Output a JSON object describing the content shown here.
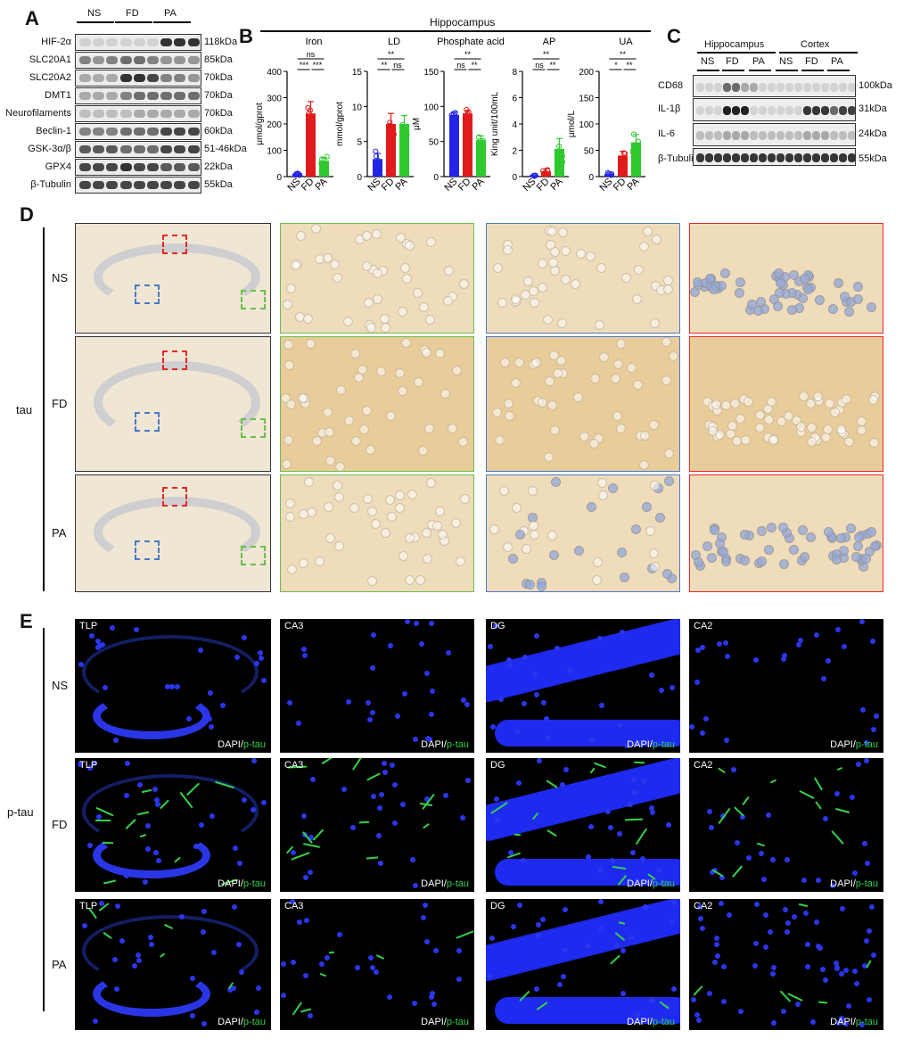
{
  "panels": {
    "A": "A",
    "B": "B",
    "C": "C",
    "D": "D",
    "E": "E"
  },
  "westernA": {
    "groups": [
      "NS",
      "FD",
      "PA"
    ],
    "proteins": [
      "HIF-2α",
      "SLC20A1",
      "SLC20A2",
      "DMT1",
      "Neurofilaments",
      "Beclin-1",
      "GSK-3α/β",
      "GPX4",
      "β-Tubulin"
    ],
    "sizes": [
      "118kDa",
      "85kDa",
      "70kDa",
      "70kDa",
      "70kDa",
      "60kDa",
      "51-46kDa",
      "22kDa",
      "55kDa"
    ]
  },
  "westernC": {
    "regions": [
      "Hippocampus",
      "Cortex"
    ],
    "groups": [
      "NS",
      "FD",
      "PA",
      "NS",
      "FD",
      "PA"
    ],
    "proteins": [
      "CD68",
      "IL-1β",
      "IL-6",
      "β-Tubulin"
    ],
    "sizes": [
      "100kDa",
      "31kDa",
      "24kDa",
      "55kDa"
    ]
  },
  "chart_data": [
    {
      "type": "bar",
      "section": "Hippocampus",
      "title": "Iron",
      "ylabel": "μmol/gprot",
      "categories": [
        "NS",
        "FD",
        "PA"
      ],
      "values": [
        12,
        240,
        60
      ],
      "errors": [
        5,
        45,
        12
      ],
      "ylim": [
        0,
        400
      ],
      "yticks": [
        0,
        100,
        200,
        300,
        400
      ],
      "colors": [
        "#2424e6",
        "#e01b1b",
        "#2ec92e"
      ],
      "significance": [
        "ns",
        "***",
        "***"
      ]
    },
    {
      "type": "bar",
      "section": "Hippocampus",
      "title": "LD",
      "ylabel": "mmol/gprot",
      "categories": [
        "NS",
        "FD",
        "PA"
      ],
      "values": [
        2.5,
        7.5,
        7.5
      ],
      "errors": [
        0.8,
        1.5,
        1.2
      ],
      "ylim": [
        0,
        15
      ],
      "yticks": [
        0,
        5,
        10,
        15
      ],
      "colors": [
        "#2424e6",
        "#e01b1b",
        "#2ec92e"
      ],
      "significance": [
        "**",
        "**",
        "ns"
      ]
    },
    {
      "type": "bar",
      "section": "Hippocampus",
      "title": "Phosphate acid",
      "ylabel": "μM",
      "categories": [
        "NS",
        "FD",
        "PA"
      ],
      "values": [
        88,
        90,
        52
      ],
      "errors": [
        4,
        4,
        6
      ],
      "ylim": [
        0,
        150
      ],
      "yticks": [
        0,
        50,
        100,
        150
      ],
      "colors": [
        "#2424e6",
        "#e01b1b",
        "#2ec92e"
      ],
      "significance": [
        "**",
        "ns",
        "**"
      ]
    },
    {
      "type": "bar",
      "section": "Hippocampus",
      "title": "AP",
      "ylabel": "King unit/100mL",
      "categories": [
        "NS",
        "FD",
        "PA"
      ],
      "values": [
        0.05,
        0.4,
        2.1
      ],
      "errors": [
        0.03,
        0.2,
        0.8
      ],
      "ylim": [
        0,
        8
      ],
      "yticks": [
        0,
        2,
        4,
        6,
        8
      ],
      "colors": [
        "#2424e6",
        "#e01b1b",
        "#2ec92e"
      ],
      "significance": [
        "**",
        "ns",
        "**"
      ]
    },
    {
      "type": "bar",
      "section": "Hippocampus",
      "title": "UA",
      "ylabel": "μmol/L",
      "categories": [
        "NS",
        "FD",
        "PA"
      ],
      "values": [
        5,
        40,
        65
      ],
      "errors": [
        2,
        8,
        15
      ],
      "ylim": [
        0,
        200
      ],
      "yticks": [
        0,
        50,
        100,
        150,
        200
      ],
      "colors": [
        "#2424e6",
        "#e01b1b",
        "#2ec92e"
      ],
      "significance": [
        "**",
        "*",
        "**"
      ]
    }
  ],
  "panelD": {
    "stain": "tau",
    "rows": [
      "NS",
      "FD",
      "PA"
    ],
    "roiColors": {
      "red": "#e8282a",
      "blue": "#4a78c8",
      "green": "#6cbd4a"
    }
  },
  "panelE": {
    "stain": "p-tau",
    "rows": [
      "NS",
      "FD",
      "PA"
    ],
    "regions": [
      "TLP",
      "CA3",
      "DG",
      "CA2"
    ],
    "channel1": "DAPI",
    "sep": "/",
    "channel2": "p-tau"
  }
}
